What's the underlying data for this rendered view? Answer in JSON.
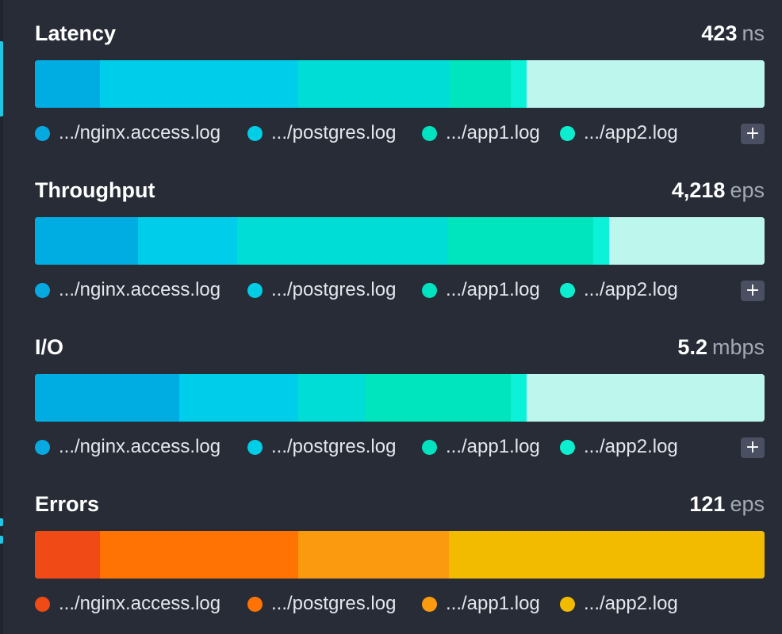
{
  "panels": [
    {
      "title": "Latency",
      "value": "423",
      "unit": "ns",
      "segments": [
        {
          "fraction": 0.089,
          "color": "#00ade3"
        },
        {
          "fraction": 0.272,
          "color": "#00cdea"
        },
        {
          "fraction": 0.206,
          "color": "#00dcd6"
        },
        {
          "fraction": 0.085,
          "color": "#00e5bd"
        },
        {
          "fraction": 0.022,
          "color": "#0cf2d8"
        },
        {
          "fraction": 0.326,
          "color": "#bdf6ec"
        }
      ],
      "legend": [
        {
          "label": ".../nginx.access.log",
          "color": "#06a9e0"
        },
        {
          "label": ".../postgres.log",
          "color": "#00cde6"
        },
        {
          "label": ".../app1.log",
          "color": "#00e2c0"
        },
        {
          "label": ".../app2.log",
          "color": "#0ceecf"
        }
      ],
      "add_label": "+"
    },
    {
      "title": "Throughput",
      "value": "4,218",
      "unit": "eps",
      "segments": [
        {
          "fraction": 0.141,
          "color": "#00ade3"
        },
        {
          "fraction": 0.136,
          "color": "#00cdea"
        },
        {
          "fraction": 0.289,
          "color": "#00dcd6"
        },
        {
          "fraction": 0.199,
          "color": "#00e5bd"
        },
        {
          "fraction": 0.022,
          "color": "#0cf2d8"
        },
        {
          "fraction": 0.213,
          "color": "#bdf6ec"
        }
      ],
      "legend": [
        {
          "label": ".../nginx.access.log",
          "color": "#06a9e0"
        },
        {
          "label": ".../postgres.log",
          "color": "#00cde6"
        },
        {
          "label": ".../app1.log",
          "color": "#00e2c0"
        },
        {
          "label": ".../app2.log",
          "color": "#0ceecf"
        }
      ],
      "add_label": "+"
    },
    {
      "title": "I/O",
      "value": "5.2",
      "unit": "mbps",
      "segments": [
        {
          "fraction": 0.198,
          "color": "#00ade3"
        },
        {
          "fraction": 0.163,
          "color": "#00cdea"
        },
        {
          "fraction": 0.091,
          "color": "#00dcd6"
        },
        {
          "fraction": 0.2,
          "color": "#00e5bd"
        },
        {
          "fraction": 0.022,
          "color": "#0cf2d8"
        },
        {
          "fraction": 0.326,
          "color": "#bdf6ec"
        }
      ],
      "legend": [
        {
          "label": ".../nginx.access.log",
          "color": "#06a9e0"
        },
        {
          "label": ".../postgres.log",
          "color": "#00cde6"
        },
        {
          "label": ".../app1.log",
          "color": "#00e2c0"
        },
        {
          "label": ".../app2.log",
          "color": "#0ceecf"
        }
      ],
      "add_label": "+"
    },
    {
      "title": "Errors",
      "value": "121",
      "unit": "eps",
      "segments": [
        {
          "fraction": 0.089,
          "color": "#f04a16"
        },
        {
          "fraction": 0.272,
          "color": "#ff7304"
        },
        {
          "fraction": 0.207,
          "color": "#fb9a0e"
        },
        {
          "fraction": 0.432,
          "color": "#f2bb00"
        }
      ],
      "legend": [
        {
          "label": ".../nginx.access.log",
          "color": "#f04a16"
        },
        {
          "label": ".../postgres.log",
          "color": "#ff7304"
        },
        {
          "label": ".../app1.log",
          "color": "#fb9a0e"
        },
        {
          "label": ".../app2.log",
          "color": "#f2bb00"
        }
      ],
      "add_label": ""
    }
  ]
}
